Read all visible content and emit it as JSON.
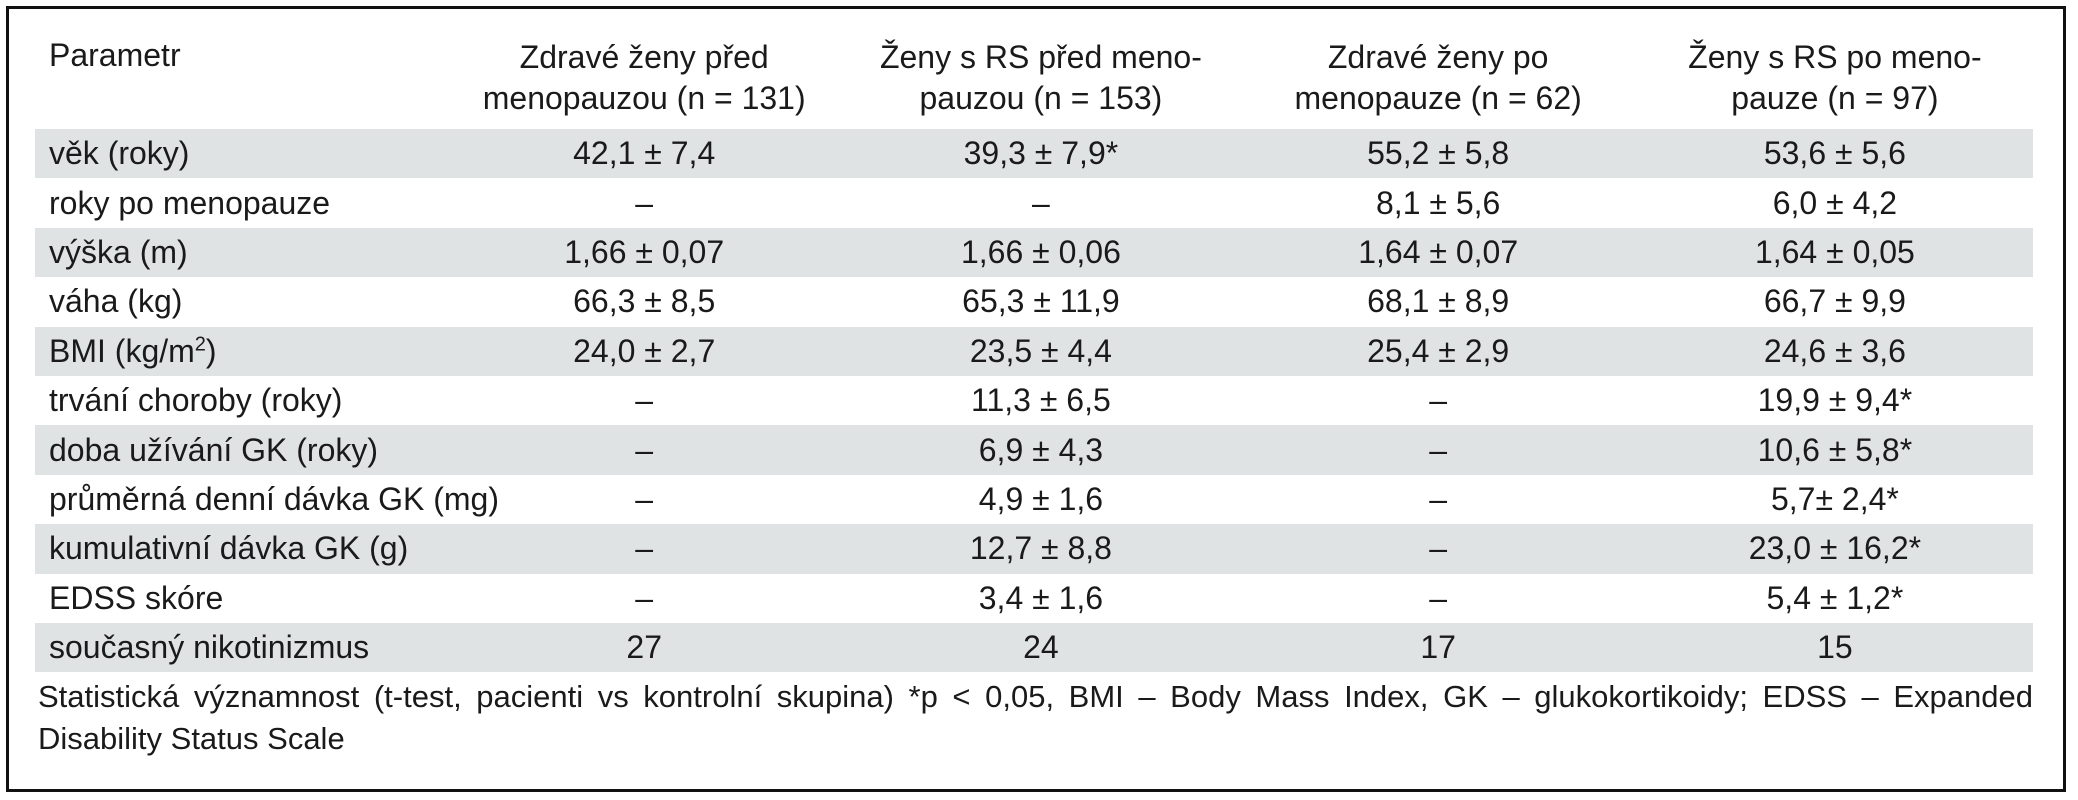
{
  "table": {
    "headers": [
      {
        "line1": "Parametr",
        "line2": ""
      },
      {
        "line1": "Zdravé ženy před",
        "line2": "menopauzou (n = 131)"
      },
      {
        "line1": "Ženy s RS před meno-",
        "line2": "pauzou (n = 153)"
      },
      {
        "line1": "Zdravé ženy po",
        "line2": "menopauze (n = 62)"
      },
      {
        "line1": "Ženy s RS po meno-",
        "line2": "pauze (n = 97)"
      }
    ],
    "rows": [
      {
        "param": "věk (roky)",
        "sup": "",
        "param_suffix": "",
        "values": [
          "42,1 ± 7,4",
          "39,3 ± 7,9*",
          "55,2 ± 5,8",
          "53,6 ± 5,6"
        ]
      },
      {
        "param": "roky po menopauze",
        "sup": "",
        "param_suffix": "",
        "values": [
          "–",
          "–",
          "8,1 ± 5,6",
          "6,0 ± 4,2"
        ]
      },
      {
        "param": "výška (m)",
        "sup": "",
        "param_suffix": "",
        "values": [
          "1,66 ± 0,07",
          "1,66 ± 0,06",
          "1,64 ± 0,07",
          "1,64 ± 0,05"
        ]
      },
      {
        "param": "váha (kg)",
        "sup": "",
        "param_suffix": "",
        "values": [
          "66,3 ± 8,5",
          "65,3 ± 11,9",
          "68,1 ± 8,9",
          "66,7 ± 9,9"
        ]
      },
      {
        "param": "BMI (kg/m",
        "sup": "2",
        "param_suffix": ")",
        "values": [
          "24,0 ± 2,7",
          "23,5 ± 4,4",
          "25,4 ± 2,9",
          "24,6 ± 3,6"
        ]
      },
      {
        "param": "trvání choroby (roky)",
        "sup": "",
        "param_suffix": "",
        "values": [
          "–",
          "11,3 ± 6,5",
          "–",
          "19,9 ± 9,4*"
        ]
      },
      {
        "param": "doba užívání GK (roky)",
        "sup": "",
        "param_suffix": "",
        "values": [
          "–",
          "6,9 ± 4,3",
          "–",
          "10,6 ± 5,8*"
        ]
      },
      {
        "param": "průměrná denní dávka GK (mg)",
        "sup": "",
        "param_suffix": "",
        "values": [
          "–",
          "4,9 ± 1,6",
          "–",
          "5,7± 2,4*"
        ]
      },
      {
        "param": "kumulativní dávka GK (g)",
        "sup": "",
        "param_suffix": "",
        "values": [
          "–",
          "12,7 ± 8,8",
          "–",
          "23,0 ± 16,2*"
        ]
      },
      {
        "param": "EDSS skóre",
        "sup": "",
        "param_suffix": "",
        "values": [
          "–",
          "3,4 ± 1,6",
          "–",
          "5,4 ± 1,2*"
        ]
      },
      {
        "param": "současný nikotinizmus",
        "sup": "",
        "param_suffix": "",
        "values": [
          "27",
          "24",
          "17",
          "15"
        ]
      }
    ]
  },
  "footnote": "Statistická významnost (t-test, pacienti vs kontrolní skupina) *p < 0,05, BMI – Body Mass Index, GK – glukokortikoidy; EDSS – Expanded Disability Status Scale",
  "colors": {
    "row_shade": "#dfe3e4",
    "border": "#111111",
    "text": "#1a1a1a"
  }
}
